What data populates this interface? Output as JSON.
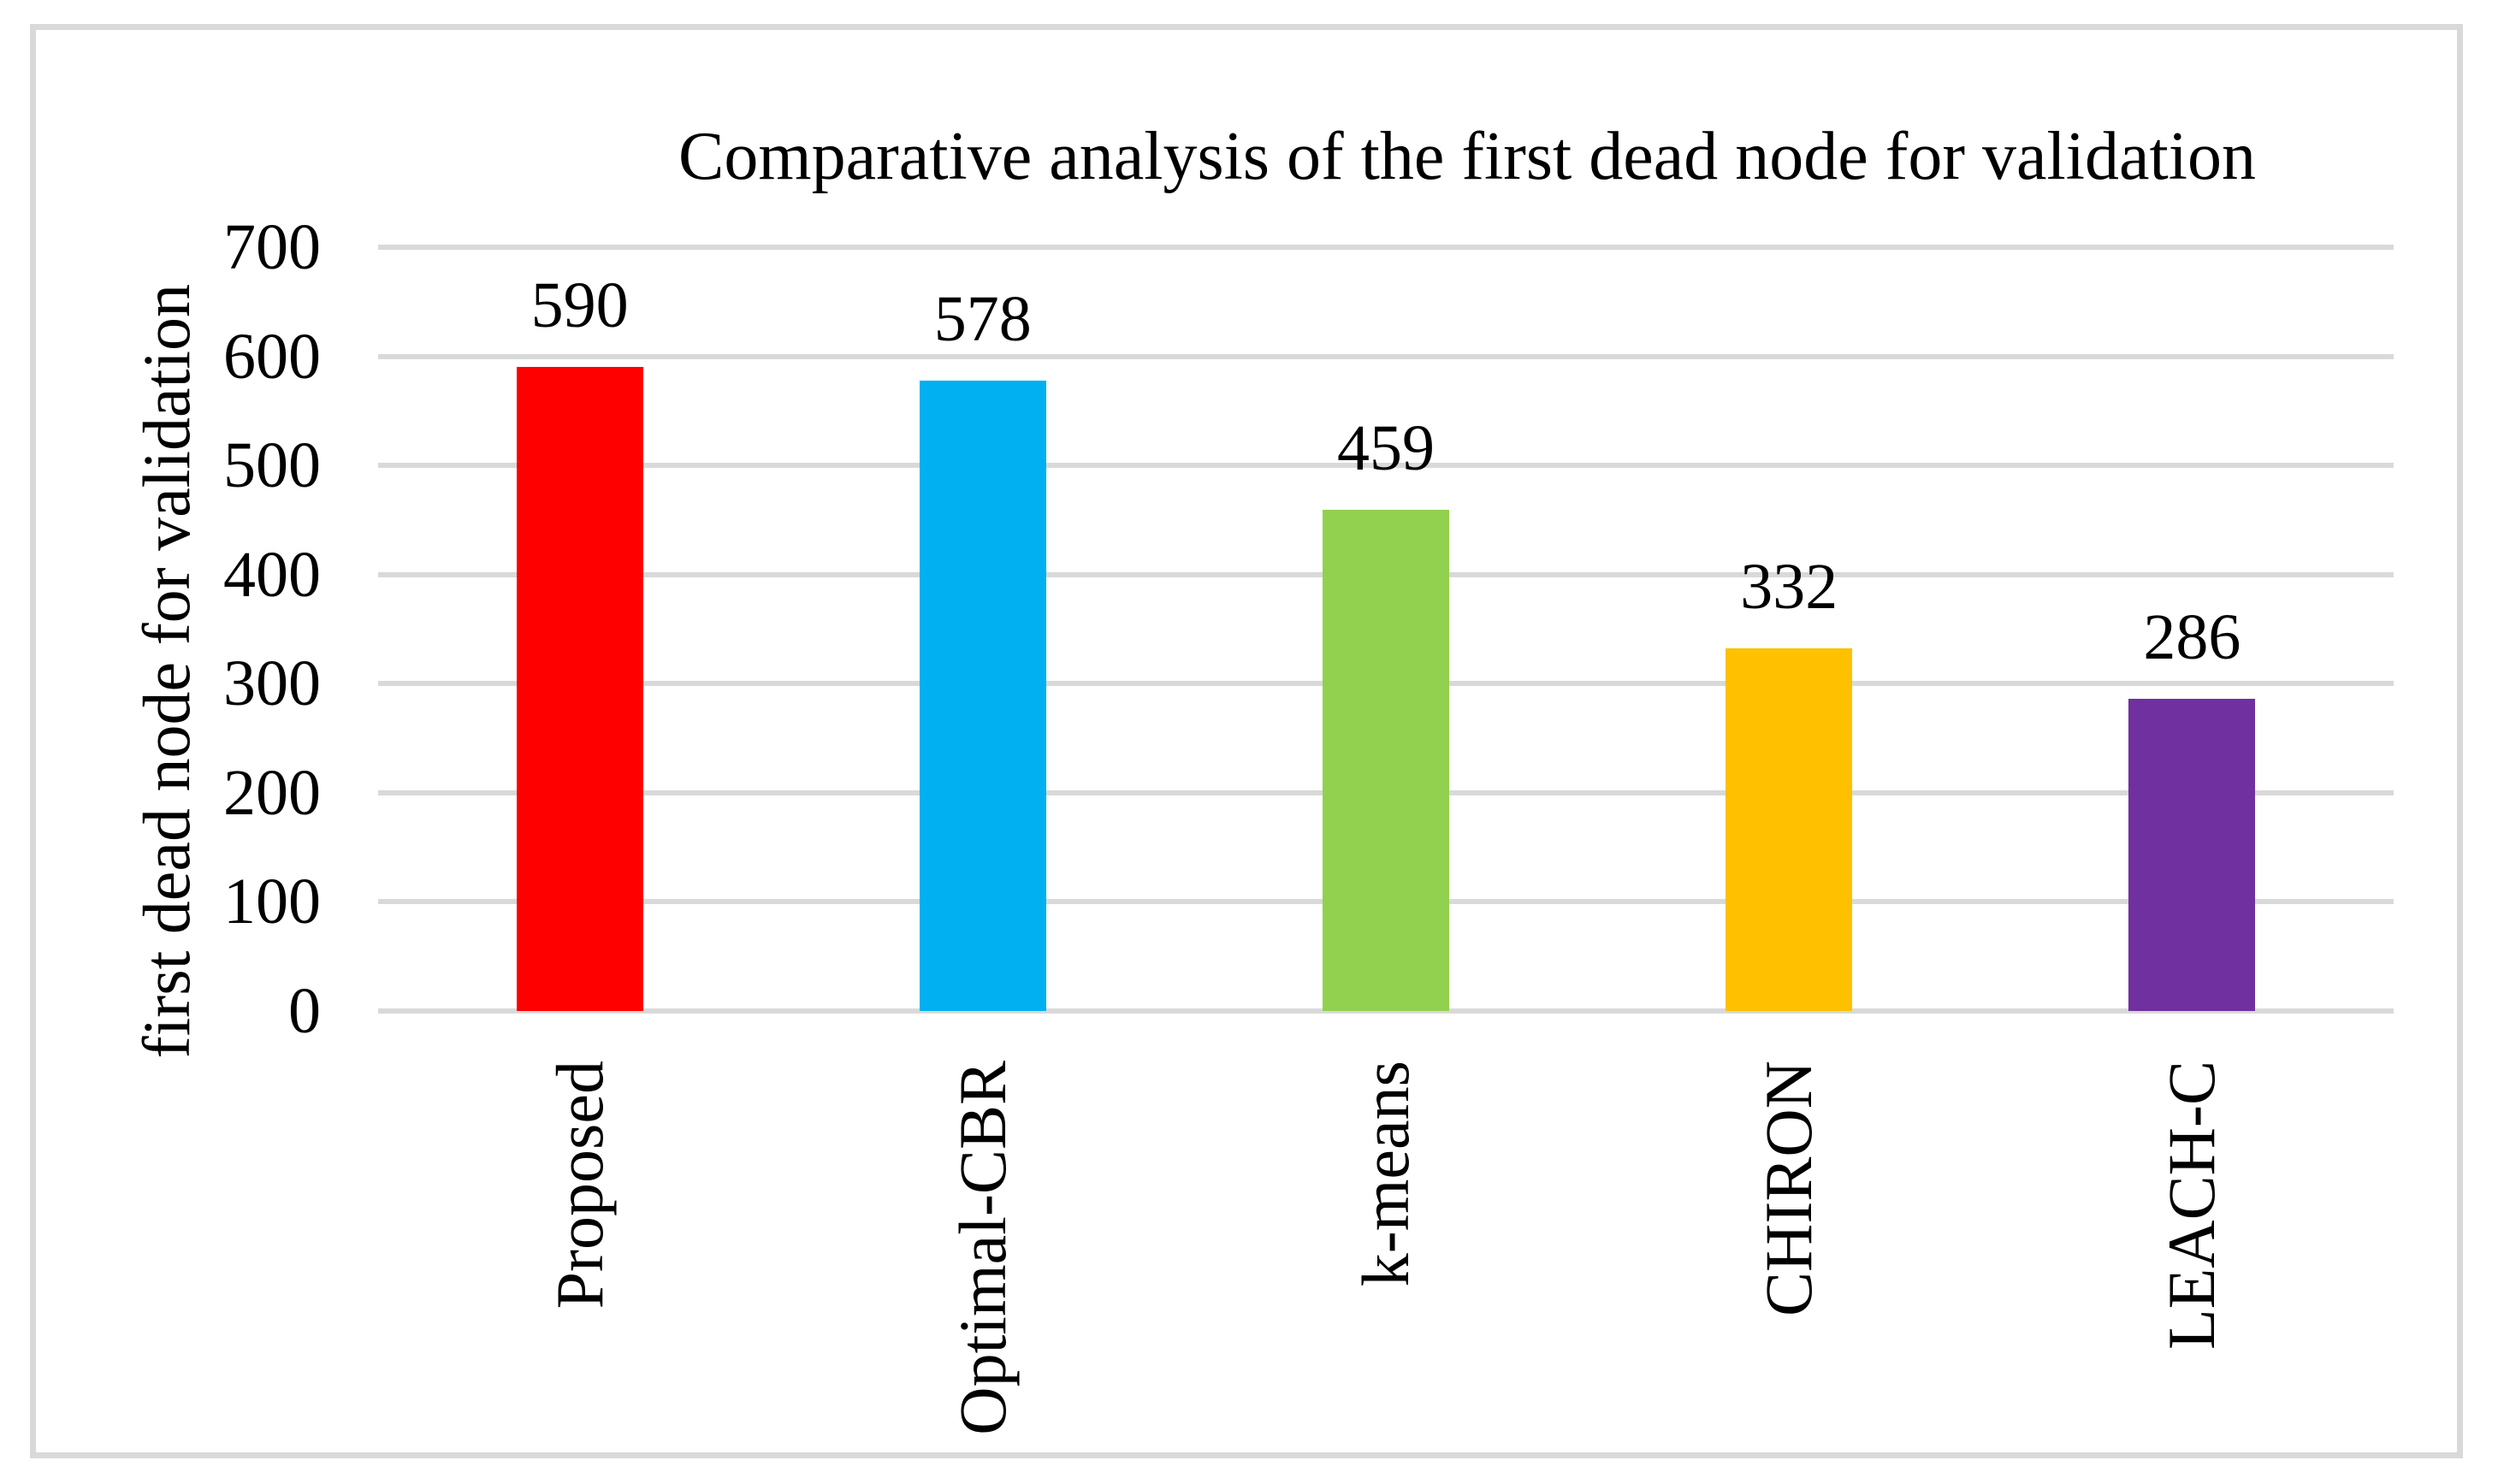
{
  "chart_data": {
    "type": "bar",
    "title": "Comparative analysis of the first dead node for validation",
    "ylabel": "first dead node for validation",
    "xlabel": "",
    "categories": [
      "Proposed",
      "Optimal-CBR",
      "k-means",
      "CHIRON",
      "LEACH-C"
    ],
    "values": [
      590,
      578,
      459,
      332,
      286
    ],
    "value_labels": [
      "590",
      "578",
      "459",
      "332",
      "286"
    ],
    "bar_colors": [
      "#ff0000",
      "#00b0f0",
      "#92d050",
      "#ffc000",
      "#7030a0"
    ],
    "ylim": [
      0,
      700
    ],
    "ytick_interval": 100,
    "ytick_labels": [
      "700",
      "600",
      "500",
      "400",
      "300",
      "200",
      "100",
      "0"
    ],
    "grid": "horizontal",
    "gridline_color": "#d9d9d9",
    "legend": "none",
    "category_label_rotation_deg": -90
  }
}
